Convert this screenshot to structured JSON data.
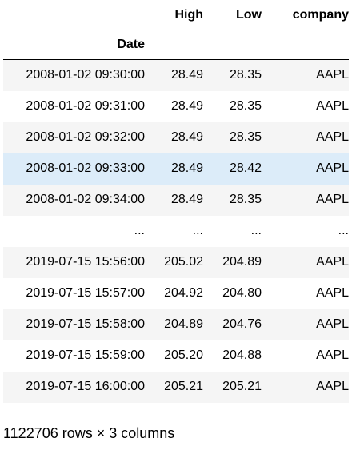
{
  "table": {
    "columns": [
      "High",
      "Low",
      "company"
    ],
    "index_name": "Date",
    "rows": [
      {
        "date": "2008-01-02 09:30:00",
        "high": "28.49",
        "low": "28.35",
        "company": "AAPL"
      },
      {
        "date": "2008-01-02 09:31:00",
        "high": "28.49",
        "low": "28.35",
        "company": "AAPL"
      },
      {
        "date": "2008-01-02 09:32:00",
        "high": "28.49",
        "low": "28.35",
        "company": "AAPL"
      },
      {
        "date": "2008-01-02 09:33:00",
        "high": "28.49",
        "low": "28.42",
        "company": "AAPL"
      },
      {
        "date": "2008-01-02 09:34:00",
        "high": "28.49",
        "low": "28.35",
        "company": "AAPL"
      },
      {
        "date": "...",
        "high": "...",
        "low": "...",
        "company": "..."
      },
      {
        "date": "2019-07-15 15:56:00",
        "high": "205.02",
        "low": "204.89",
        "company": "AAPL"
      },
      {
        "date": "2019-07-15 15:57:00",
        "high": "204.92",
        "low": "204.80",
        "company": "AAPL"
      },
      {
        "date": "2019-07-15 15:58:00",
        "high": "204.89",
        "low": "204.76",
        "company": "AAPL"
      },
      {
        "date": "2019-07-15 15:59:00",
        "high": "205.20",
        "low": "204.88",
        "company": "AAPL"
      },
      {
        "date": "2019-07-15 16:00:00",
        "high": "205.21",
        "low": "205.21",
        "company": "AAPL"
      }
    ],
    "highlight_color": "#dcecf9",
    "stripe_color": "#f5f5f5"
  },
  "footer": {
    "shape_text": "1122706 rows × 3 columns"
  }
}
